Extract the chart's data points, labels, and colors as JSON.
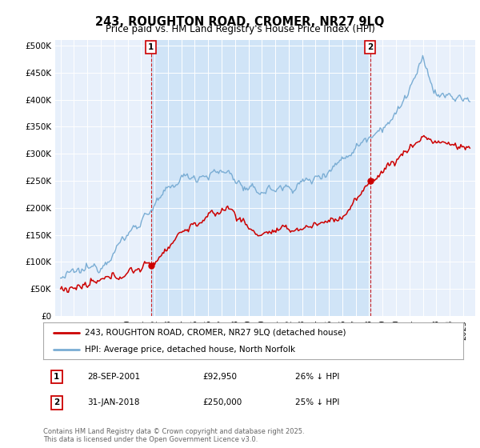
{
  "title_line1": "243, ROUGHTON ROAD, CROMER, NR27 9LQ",
  "title_line2": "Price paid vs. HM Land Registry's House Price Index (HPI)",
  "background_color": "#ffffff",
  "plot_bg_color": "#e8f0fb",
  "highlight_color": "#d0e4f7",
  "legend_line1": "243, ROUGHTON ROAD, CROMER, NR27 9LQ (detached house)",
  "legend_line2": "HPI: Average price, detached house, North Norfolk",
  "marker1_date": "28-SEP-2001",
  "marker1_price": "£92,950",
  "marker1_hpi": "26% ↓ HPI",
  "marker1_year": 2001.75,
  "marker2_date": "31-JAN-2018",
  "marker2_price": "£250,000",
  "marker2_hpi": "25% ↓ HPI",
  "marker2_year": 2018.08,
  "copyright_text": "Contains HM Land Registry data © Crown copyright and database right 2025.\nThis data is licensed under the Open Government Licence v3.0.",
  "red_color": "#cc0000",
  "blue_color": "#7aadd4",
  "marker_box_color": "#cc0000",
  "ylim_max": 510000,
  "ylim_min": 0,
  "title_fontsize": 10.5,
  "subtitle_fontsize": 8.5
}
